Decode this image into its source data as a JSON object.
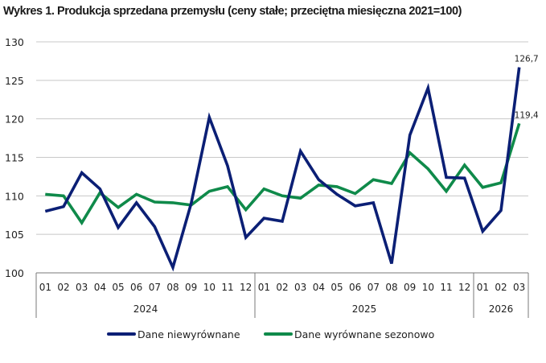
{
  "chart_data": {
    "type": "line",
    "title": "Wykres 1. Produkcja sprzedana przemysłu (ceny stałe; przeciętna miesięczna 2021=100)",
    "xlabel": "",
    "ylabel": "",
    "ylim": [
      100,
      130
    ],
    "yticks": [
      "100",
      "105",
      "110",
      "115",
      "120",
      "125",
      "130"
    ],
    "grid": true,
    "legend_position": "bottom",
    "categories": [
      "01",
      "02",
      "03",
      "04",
      "05",
      "06",
      "07",
      "08",
      "09",
      "10",
      "11",
      "12",
      "01",
      "02",
      "03",
      "04",
      "05",
      "06",
      "07",
      "08",
      "09",
      "10",
      "11",
      "12",
      "01",
      "02",
      "03"
    ],
    "years": [
      {
        "label": "2024",
        "months": 12
      },
      {
        "label": "2025",
        "months": 12
      },
      {
        "label": "2026",
        "months": 3
      }
    ],
    "series": [
      {
        "name": "Dane niewyrównane",
        "color": "#0b1f75",
        "values": [
          108.0,
          108.6,
          113.0,
          110.9,
          105.9,
          109.1,
          106.0,
          100.7,
          109.0,
          120.2,
          113.9,
          104.6,
          107.1,
          106.7,
          115.8,
          112.1,
          110.2,
          108.7,
          109.1,
          101.2,
          117.9,
          124.0,
          112.4,
          112.3,
          105.4,
          108.1,
          126.7
        ],
        "last_label": "126,7"
      },
      {
        "name": "Dane wyrównane sezonowo",
        "color": "#0f8a4a",
        "values": [
          110.2,
          110.0,
          106.5,
          110.4,
          108.5,
          110.2,
          109.2,
          109.1,
          108.8,
          110.6,
          111.2,
          108.2,
          110.9,
          110.0,
          109.7,
          111.4,
          111.2,
          110.3,
          112.1,
          111.6,
          115.6,
          113.5,
          110.6,
          114.0,
          111.1,
          111.7,
          119.4
        ],
        "last_label": "119,4"
      }
    ]
  }
}
